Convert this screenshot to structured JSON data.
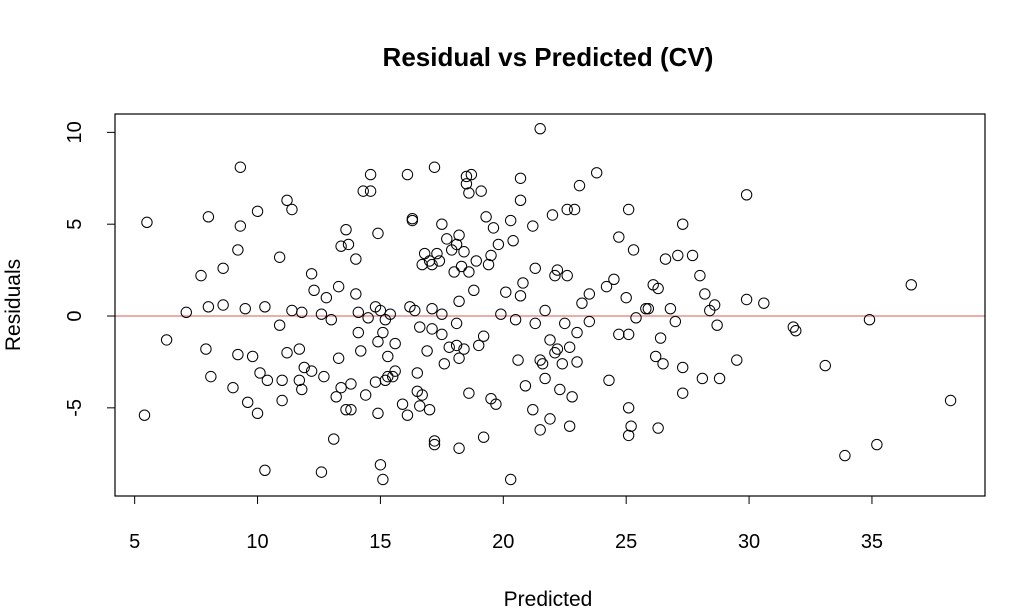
{
  "chart_data": {
    "type": "scatter",
    "title": "Residual vs Predicted (CV)",
    "xlabel": "Predicted",
    "ylabel": "Residuals",
    "xlim": [
      4.2,
      39.6
    ],
    "ylim": [
      -9.8,
      11.0
    ],
    "xticks": [
      5,
      10,
      15,
      20,
      25,
      30,
      35
    ],
    "yticks": [
      -5,
      0,
      5,
      10
    ],
    "grid": false,
    "legend": "none",
    "reference_line": {
      "y": 0,
      "color": "#e8908e"
    },
    "point_color": "#000000",
    "points": [
      [
        5.5,
        5.1
      ],
      [
        5.4,
        -5.4
      ],
      [
        6.3,
        -1.3
      ],
      [
        7.1,
        0.2
      ],
      [
        7.7,
        2.2
      ],
      [
        7.9,
        -1.8
      ],
      [
        8.0,
        0.5
      ],
      [
        8.0,
        5.4
      ],
      [
        8.1,
        -3.3
      ],
      [
        8.6,
        0.6
      ],
      [
        8.6,
        2.6
      ],
      [
        9.0,
        -3.9
      ],
      [
        9.2,
        3.6
      ],
      [
        9.2,
        -2.1
      ],
      [
        9.3,
        8.1
      ],
      [
        9.3,
        4.9
      ],
      [
        9.5,
        0.4
      ],
      [
        9.6,
        -4.7
      ],
      [
        9.8,
        -2.2
      ],
      [
        10.0,
        5.7
      ],
      [
        10.0,
        -5.3
      ],
      [
        10.1,
        -3.1
      ],
      [
        10.3,
        -8.4
      ],
      [
        10.3,
        0.5
      ],
      [
        10.4,
        -3.5
      ],
      [
        10.9,
        -0.5
      ],
      [
        10.9,
        3.2
      ],
      [
        11.0,
        -4.6
      ],
      [
        11.0,
        -3.5
      ],
      [
        11.2,
        -2.0
      ],
      [
        11.2,
        6.3
      ],
      [
        11.4,
        5.8
      ],
      [
        11.4,
        0.3
      ],
      [
        11.7,
        -1.8
      ],
      [
        11.7,
        -3.5
      ],
      [
        11.8,
        0.2
      ],
      [
        11.8,
        -4.0
      ],
      [
        11.9,
        -2.8
      ],
      [
        12.2,
        2.3
      ],
      [
        12.2,
        -3.0
      ],
      [
        12.3,
        1.4
      ],
      [
        12.6,
        0.1
      ],
      [
        12.6,
        -8.5
      ],
      [
        12.7,
        -3.3
      ],
      [
        12.8,
        1.0
      ],
      [
        13.0,
        -0.2
      ],
      [
        13.1,
        -6.7
      ],
      [
        13.2,
        -4.4
      ],
      [
        13.3,
        1.6
      ],
      [
        13.3,
        -2.3
      ],
      [
        13.4,
        3.8
      ],
      [
        13.4,
        -3.9
      ],
      [
        13.6,
        4.7
      ],
      [
        13.6,
        -5.1
      ],
      [
        13.7,
        3.9
      ],
      [
        13.8,
        -3.7
      ],
      [
        13.8,
        -5.1
      ],
      [
        14.0,
        1.2
      ],
      [
        14.0,
        3.1
      ],
      [
        14.1,
        0.2
      ],
      [
        14.1,
        -0.9
      ],
      [
        14.2,
        -1.9
      ],
      [
        14.3,
        6.8
      ],
      [
        14.4,
        -4.3
      ],
      [
        14.5,
        -0.1
      ],
      [
        14.6,
        7.7
      ],
      [
        14.6,
        6.8
      ],
      [
        14.8,
        0.5
      ],
      [
        14.8,
        -3.6
      ],
      [
        14.9,
        4.5
      ],
      [
        14.9,
        -1.4
      ],
      [
        14.9,
        -5.3
      ],
      [
        15.0,
        -8.1
      ],
      [
        15.0,
        0.3
      ],
      [
        15.1,
        -0.9
      ],
      [
        15.1,
        -8.9
      ],
      [
        15.2,
        -3.5
      ],
      [
        15.2,
        -0.2
      ],
      [
        15.3,
        -2.2
      ],
      [
        15.3,
        -3.3
      ],
      [
        15.4,
        0.1
      ],
      [
        15.5,
        -3.3
      ],
      [
        15.6,
        -1.5
      ],
      [
        15.6,
        -3.0
      ],
      [
        15.9,
        -4.8
      ],
      [
        16.1,
        7.7
      ],
      [
        16.1,
        -5.4
      ],
      [
        16.2,
        0.5
      ],
      [
        16.3,
        5.3
      ],
      [
        16.3,
        5.2
      ],
      [
        16.4,
        0.3
      ],
      [
        16.5,
        -3.1
      ],
      [
        16.5,
        -4.1
      ],
      [
        16.6,
        -4.9
      ],
      [
        16.6,
        -0.6
      ],
      [
        16.7,
        2.8
      ],
      [
        16.7,
        -4.3
      ],
      [
        16.8,
        3.4
      ],
      [
        16.9,
        -1.9
      ],
      [
        17.0,
        3.0
      ],
      [
        17.0,
        -5.1
      ],
      [
        17.1,
        2.8
      ],
      [
        17.1,
        0.4
      ],
      [
        17.1,
        -0.7
      ],
      [
        17.2,
        8.1
      ],
      [
        17.2,
        -6.8
      ],
      [
        17.2,
        -7.0
      ],
      [
        17.3,
        3.4
      ],
      [
        17.4,
        3.0
      ],
      [
        17.5,
        -1.0
      ],
      [
        17.5,
        0.1
      ],
      [
        17.5,
        5.0
      ],
      [
        17.6,
        -2.6
      ],
      [
        17.7,
        4.2
      ],
      [
        17.8,
        -1.7
      ],
      [
        17.9,
        3.6
      ],
      [
        18.0,
        2.4
      ],
      [
        18.1,
        3.9
      ],
      [
        18.1,
        -0.4
      ],
      [
        18.1,
        -1.6
      ],
      [
        18.2,
        4.4
      ],
      [
        18.2,
        -7.2
      ],
      [
        18.2,
        0.8
      ],
      [
        18.2,
        -2.3
      ],
      [
        18.3,
        2.7
      ],
      [
        18.4,
        -1.8
      ],
      [
        18.4,
        3.5
      ],
      [
        18.5,
        7.6
      ],
      [
        18.5,
        7.2
      ],
      [
        18.6,
        6.7
      ],
      [
        18.6,
        2.4
      ],
      [
        18.6,
        -4.2
      ],
      [
        18.7,
        7.7
      ],
      [
        18.8,
        1.4
      ],
      [
        18.9,
        3.0
      ],
      [
        19.0,
        -1.6
      ],
      [
        19.1,
        6.8
      ],
      [
        19.2,
        -1.1
      ],
      [
        19.2,
        -6.6
      ],
      [
        19.3,
        5.4
      ],
      [
        19.4,
        2.8
      ],
      [
        19.5,
        3.3
      ],
      [
        19.5,
        -4.5
      ],
      [
        19.6,
        4.8
      ],
      [
        19.7,
        -4.8
      ],
      [
        19.8,
        3.9
      ],
      [
        19.9,
        0.1
      ],
      [
        20.1,
        1.3
      ],
      [
        20.3,
        -8.9
      ],
      [
        20.3,
        5.2
      ],
      [
        20.4,
        4.1
      ],
      [
        20.5,
        -0.2
      ],
      [
        20.6,
        -2.4
      ],
      [
        20.7,
        1.1
      ],
      [
        20.7,
        6.3
      ],
      [
        20.7,
        7.5
      ],
      [
        20.8,
        1.8
      ],
      [
        20.9,
        -3.8
      ],
      [
        21.2,
        4.9
      ],
      [
        21.2,
        -5.1
      ],
      [
        21.3,
        -0.4
      ],
      [
        21.3,
        2.6
      ],
      [
        21.5,
        10.2
      ],
      [
        21.5,
        -2.4
      ],
      [
        21.5,
        -6.2
      ],
      [
        21.6,
        -2.6
      ],
      [
        21.7,
        -3.4
      ],
      [
        21.7,
        0.3
      ],
      [
        21.9,
        -1.3
      ],
      [
        21.9,
        -5.6
      ],
      [
        22.0,
        5.5
      ],
      [
        22.1,
        -2.0
      ],
      [
        22.1,
        2.2
      ],
      [
        22.2,
        2.5
      ],
      [
        22.2,
        -1.8
      ],
      [
        22.3,
        -4.0
      ],
      [
        22.4,
        -2.6
      ],
      [
        22.5,
        -0.4
      ],
      [
        22.6,
        2.2
      ],
      [
        22.6,
        5.8
      ],
      [
        22.7,
        -1.7
      ],
      [
        22.7,
        -6.0
      ],
      [
        22.8,
        -4.4
      ],
      [
        22.9,
        5.8
      ],
      [
        23.0,
        -2.5
      ],
      [
        23.0,
        -0.9
      ],
      [
        23.1,
        7.1
      ],
      [
        23.2,
        0.7
      ],
      [
        23.5,
        -0.3
      ],
      [
        23.5,
        1.2
      ],
      [
        23.8,
        7.8
      ],
      [
        24.2,
        1.6
      ],
      [
        24.3,
        -3.5
      ],
      [
        24.5,
        2.0
      ],
      [
        24.7,
        4.3
      ],
      [
        24.7,
        -1.0
      ],
      [
        25.0,
        1.0
      ],
      [
        25.1,
        -1.0
      ],
      [
        25.1,
        5.8
      ],
      [
        25.1,
        -5.0
      ],
      [
        25.1,
        -6.5
      ],
      [
        25.2,
        -6.0
      ],
      [
        25.3,
        3.6
      ],
      [
        25.4,
        -0.1
      ],
      [
        25.8,
        0.4
      ],
      [
        25.9,
        0.4
      ],
      [
        26.1,
        1.7
      ],
      [
        26.2,
        -2.2
      ],
      [
        26.3,
        -6.1
      ],
      [
        26.3,
        1.5
      ],
      [
        26.4,
        -1.2
      ],
      [
        26.5,
        -2.6
      ],
      [
        26.6,
        3.1
      ],
      [
        26.8,
        0.4
      ],
      [
        27.0,
        -0.3
      ],
      [
        27.1,
        3.3
      ],
      [
        27.3,
        5.0
      ],
      [
        27.3,
        -2.8
      ],
      [
        27.3,
        -4.2
      ],
      [
        27.7,
        3.3
      ],
      [
        28.0,
        2.2
      ],
      [
        28.1,
        -3.4
      ],
      [
        28.2,
        1.2
      ],
      [
        28.4,
        0.3
      ],
      [
        28.6,
        0.6
      ],
      [
        28.7,
        -0.5
      ],
      [
        28.8,
        -3.4
      ],
      [
        29.5,
        -2.4
      ],
      [
        29.9,
        6.6
      ],
      [
        29.9,
        0.9
      ],
      [
        30.6,
        0.7
      ],
      [
        31.8,
        -0.6
      ],
      [
        31.9,
        -0.8
      ],
      [
        33.1,
        -2.7
      ],
      [
        33.9,
        -7.6
      ],
      [
        34.9,
        -0.2
      ],
      [
        35.2,
        -7.0
      ],
      [
        36.6,
        1.7
      ],
      [
        38.2,
        -4.6
      ]
    ]
  }
}
